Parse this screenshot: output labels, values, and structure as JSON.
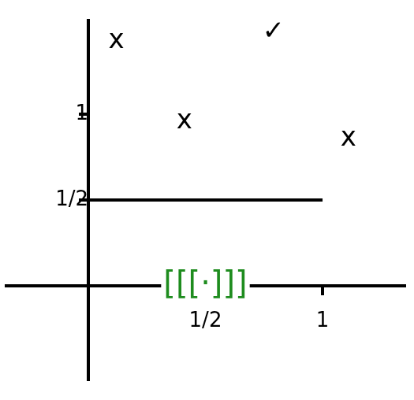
{
  "chart_data": {
    "type": "line",
    "x": [
      0,
      1
    ],
    "values": [
      0.5,
      0.5
    ],
    "color": "#000000",
    "xlim": [
      -0.35,
      1.35
    ],
    "ylim": [
      -0.55,
      1.55
    ],
    "xticks": [
      {
        "value": 0.5,
        "label": "1/2"
      },
      {
        "value": 1,
        "label": "1"
      }
    ],
    "yticks": [
      {
        "value": 0.5,
        "label": "1/2"
      },
      {
        "value": 1,
        "label": "1"
      }
    ],
    "grid": false,
    "annotations": [
      {
        "text": "x",
        "x": 0.12,
        "y": 1.43
      },
      {
        "text": "✓",
        "x": 0.79,
        "y": 1.48
      },
      {
        "text": "x",
        "x": 0.41,
        "y": 0.96
      },
      {
        "text": "x",
        "x": 1.11,
        "y": 0.86
      },
      {
        "text": "[[[·]]]",
        "x": 0.5,
        "y": 0,
        "color": "#1e8c1e"
      }
    ]
  }
}
